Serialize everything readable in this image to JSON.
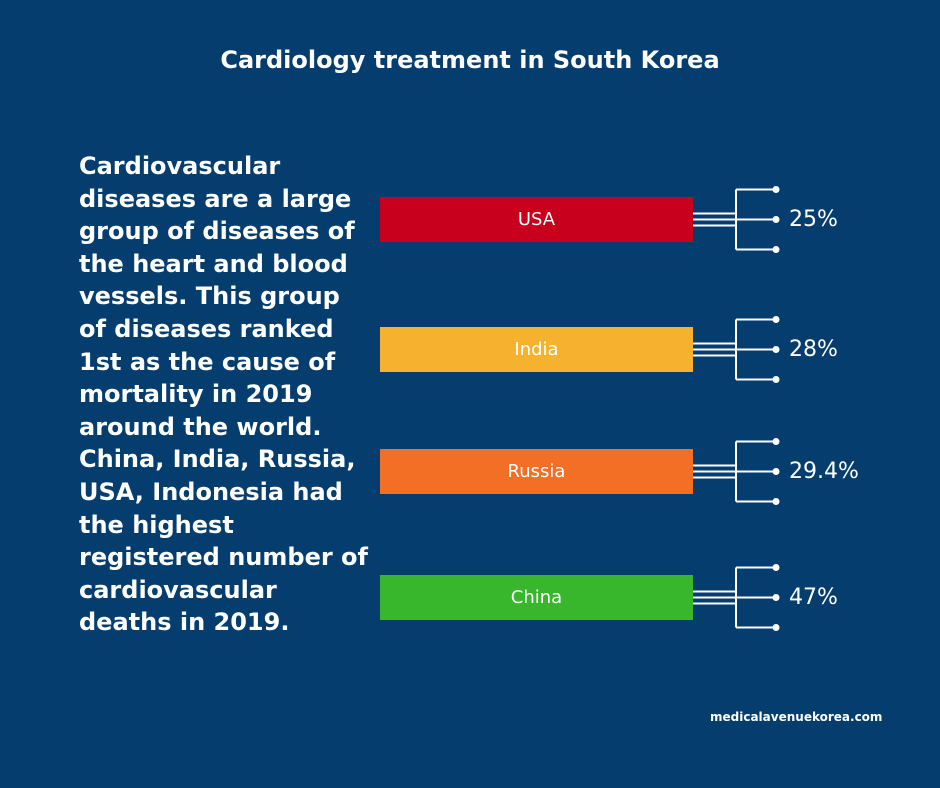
{
  "title": "Cardiology treatment in South Korea",
  "description": "Cardiovascular diseases are a large group of diseases of the heart and blood vessels. This group of diseases ranked 1st as the cause of mortality in 2019 around the world. China, India, Russia, USA, Indonesia had the highest registered number of cardiovascular deaths in 2019.",
  "source": "medicalavenuekorea.com",
  "chart_data": {
    "type": "bar",
    "categories": [
      "USA",
      "India",
      "Russia",
      "China"
    ],
    "values": [
      25,
      28,
      29.4,
      47
    ],
    "value_labels": [
      "25%",
      "28%",
      "29.4%",
      "47%"
    ],
    "colors": [
      "#c8001e",
      "#f6b22f",
      "#f26f25",
      "#38b62c"
    ],
    "title": "Cardiology treatment in South Korea",
    "xlabel": "",
    "ylabel": ""
  }
}
